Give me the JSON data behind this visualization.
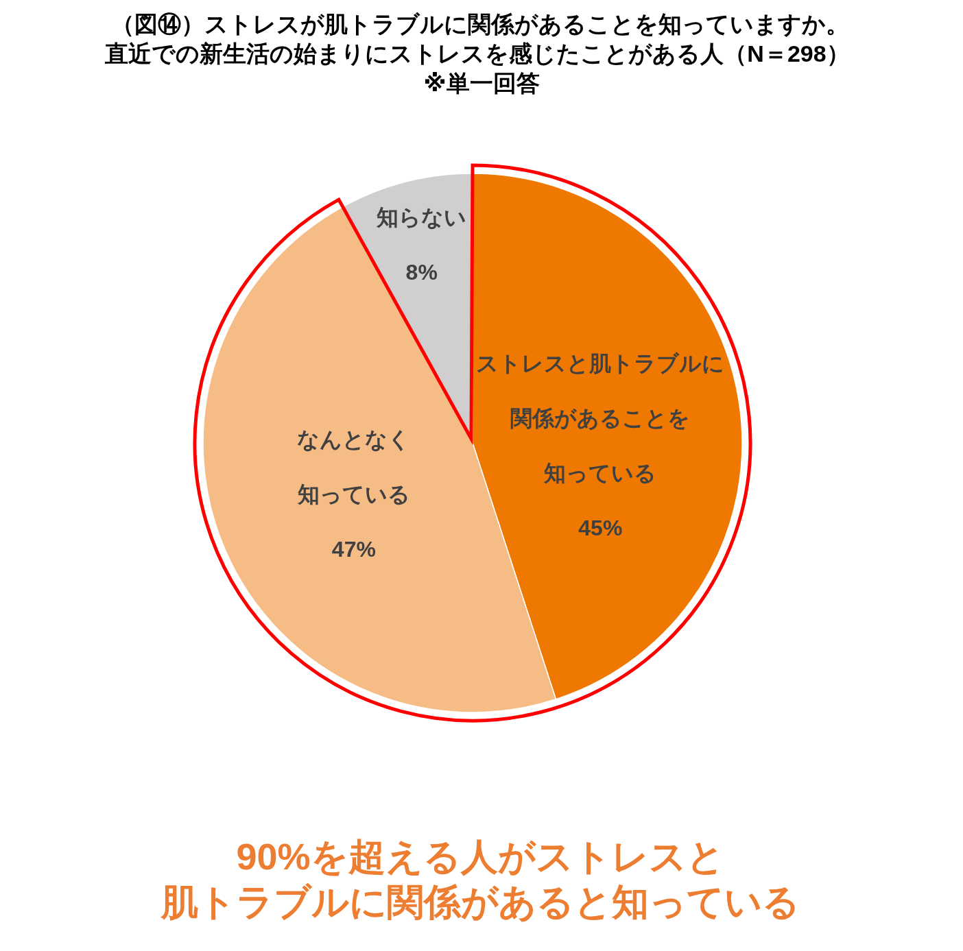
{
  "chart_data": {
    "type": "pie",
    "title": "（図⑭）ストレスが肌トラブルに関係があることを知っていますか。",
    "subtitle": "直近での新生活の始まりにストレスを感じたことがある人（N＝298）",
    "categories": [
      "ストレスと肌トラブルに関係があることを知っている",
      "なんとなく知っている",
      "知らない"
    ],
    "values": [
      45,
      47,
      8
    ],
    "value_labels": [
      "45%",
      "47%",
      "8%"
    ],
    "colors": [
      "#ee7800",
      "#f6bc86",
      "#d0cecf"
    ],
    "annotations": [
      "※単一回答",
      "90%を超える人がストレスと肌トラブルに関係があると知っている"
    ]
  }
}
